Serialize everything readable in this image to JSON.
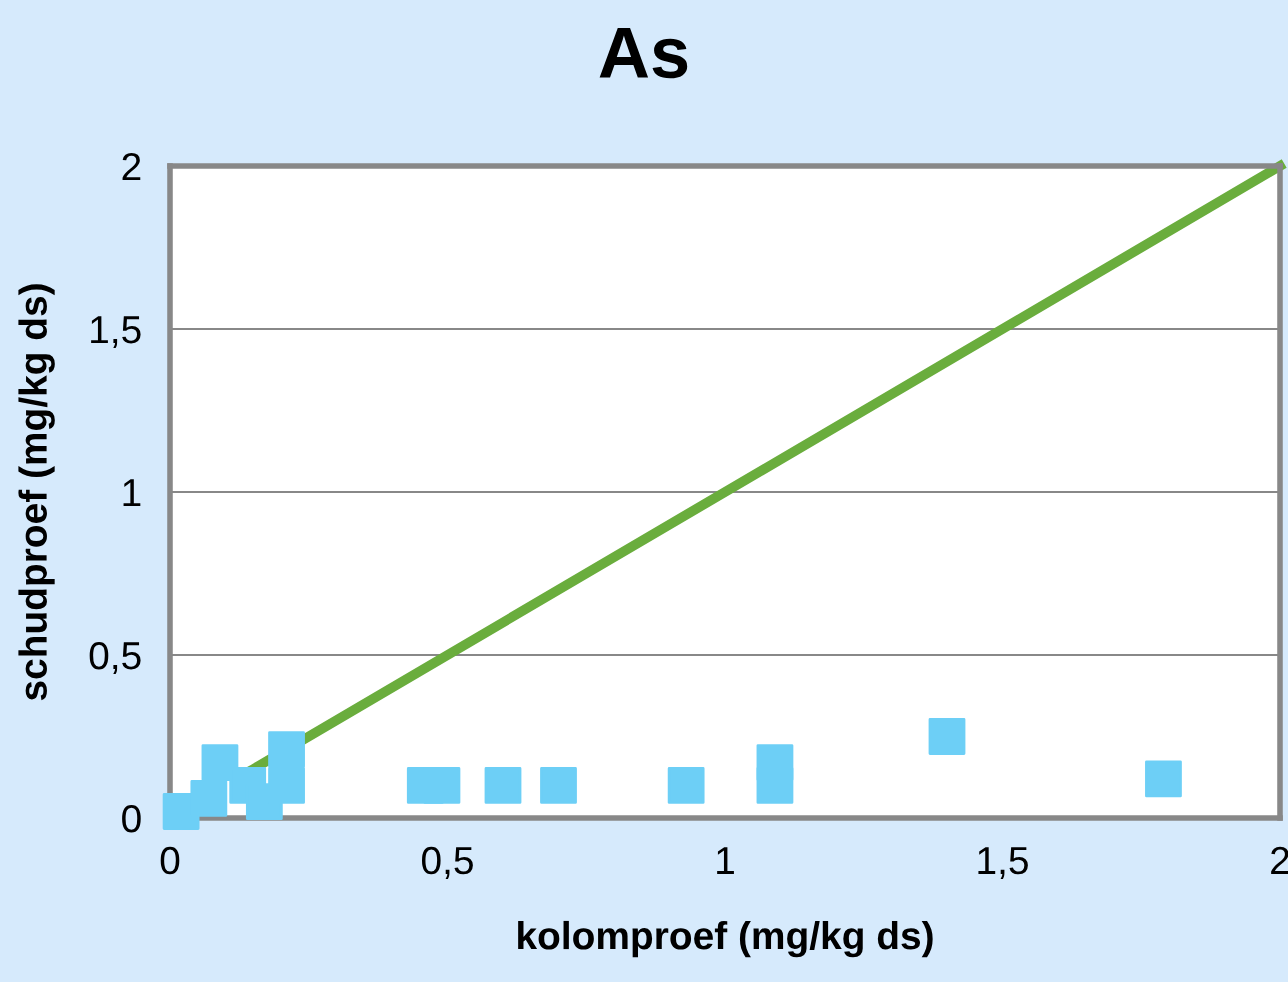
{
  "chart_data": {
    "type": "scatter",
    "title": "As",
    "xlabel": "kolomproef (mg/kg ds)",
    "ylabel": "schudproef (mg/kg ds)",
    "x": [
      0.02,
      0.07,
      0.09,
      0.14,
      0.17,
      0.21,
      0.21,
      0.46,
      0.49,
      0.6,
      0.7,
      0.93,
      1.09,
      1.09,
      1.4,
      1.79
    ],
    "series": [
      {
        "color": "#6dcff6",
        "marker": "square",
        "values": [
          0.02,
          0.06,
          0.17,
          0.1,
          0.05,
          0.21,
          0.1,
          0.1,
          0.1,
          0.1,
          0.1,
          0.1,
          0.17,
          0.1,
          0.25,
          0.12
        ]
      },
      {
        "type": "line",
        "color": "#6aad3d",
        "x": [
          0.15,
          2
        ],
        "values": [
          0.15,
          2
        ],
        "marker": "none"
      }
    ],
    "xlim": [
      0,
      2
    ],
    "ylim": [
      0,
      2
    ],
    "xticks": [
      0,
      {
        "value": 0.5,
        "label": "0,5"
      },
      1,
      {
        "value": 1.5,
        "label": "1,5"
      },
      2
    ],
    "yticks": [
      0,
      {
        "value": 0.5,
        "label": "0,5"
      },
      1,
      {
        "value": 1.5,
        "label": "1,5"
      },
      2
    ],
    "grid": "y",
    "legend": false
  }
}
